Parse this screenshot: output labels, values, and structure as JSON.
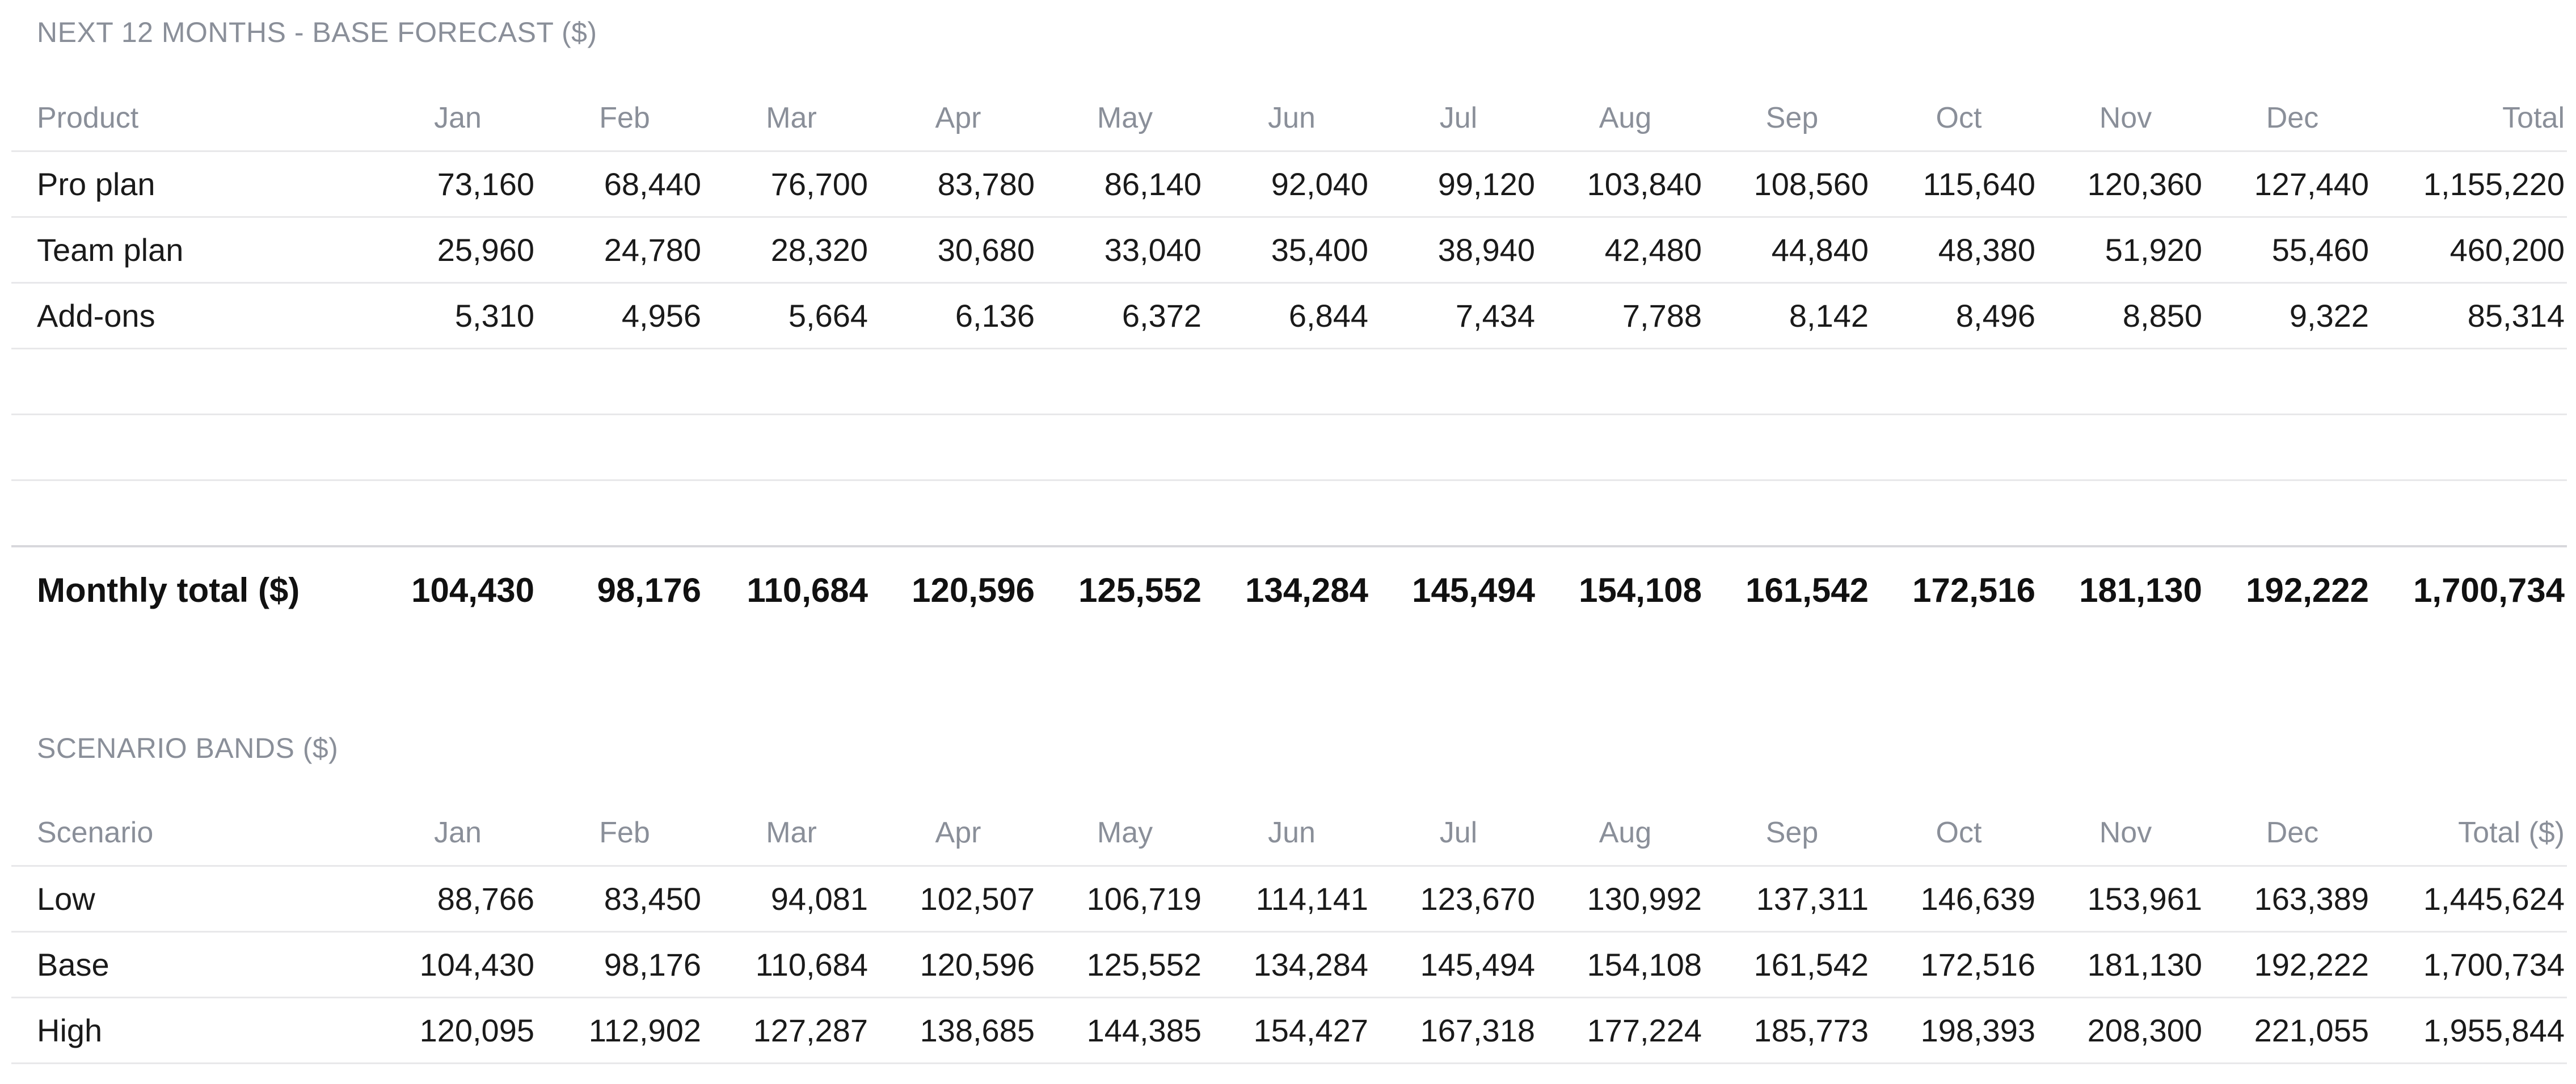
{
  "forecast": {
    "title": "NEXT 12 MONTHS - BASE FORECAST ($)",
    "columns": [
      "Product",
      "Jan",
      "Feb",
      "Mar",
      "Apr",
      "May",
      "Jun",
      "Jul",
      "Aug",
      "Sep",
      "Oct",
      "Nov",
      "Dec",
      "Total"
    ],
    "rows": [
      {
        "label": "Pro plan",
        "values": [
          "73,160",
          "68,440",
          "76,700",
          "83,780",
          "86,140",
          "92,040",
          "99,120",
          "103,840",
          "108,560",
          "115,640",
          "120,360",
          "127,440"
        ],
        "total": "1,155,220"
      },
      {
        "label": "Team plan",
        "values": [
          "25,960",
          "24,780",
          "28,320",
          "30,680",
          "33,040",
          "35,400",
          "38,940",
          "42,480",
          "44,840",
          "48,380",
          "51,920",
          "55,460"
        ],
        "total": "460,200"
      },
      {
        "label": "Add-ons",
        "values": [
          "5,310",
          "4,956",
          "5,664",
          "6,136",
          "6,372",
          "6,844",
          "7,434",
          "7,788",
          "8,142",
          "8,496",
          "8,850",
          "9,322"
        ],
        "total": "85,314"
      }
    ],
    "total_row": {
      "label": "Monthly total ($)",
      "values": [
        "104,430",
        "98,176",
        "110,684",
        "120,596",
        "125,552",
        "134,284",
        "145,494",
        "154,108",
        "161,542",
        "172,516",
        "181,130",
        "192,222"
      ],
      "total": "1,700,734"
    }
  },
  "scenarios": {
    "title": "SCENARIO BANDS ($)",
    "columns": [
      "Scenario",
      "Jan",
      "Feb",
      "Mar",
      "Apr",
      "May",
      "Jun",
      "Jul",
      "Aug",
      "Sep",
      "Oct",
      "Nov",
      "Dec",
      "Total ($)"
    ],
    "rows": [
      {
        "label": "Low",
        "values": [
          "88,766",
          "83,450",
          "94,081",
          "102,507",
          "106,719",
          "114,141",
          "123,670",
          "130,992",
          "137,311",
          "146,639",
          "153,961",
          "163,389"
        ],
        "total": "1,445,624"
      },
      {
        "label": "Base",
        "values": [
          "104,430",
          "98,176",
          "110,684",
          "120,596",
          "125,552",
          "134,284",
          "145,494",
          "154,108",
          "161,542",
          "172,516",
          "181,130",
          "192,222"
        ],
        "total": "1,700,734"
      },
      {
        "label": "High",
        "values": [
          "120,095",
          "112,902",
          "127,287",
          "138,685",
          "144,385",
          "154,427",
          "167,318",
          "177,224",
          "185,773",
          "198,393",
          "208,300",
          "221,055"
        ],
        "total": "1,955,844"
      }
    ]
  }
}
